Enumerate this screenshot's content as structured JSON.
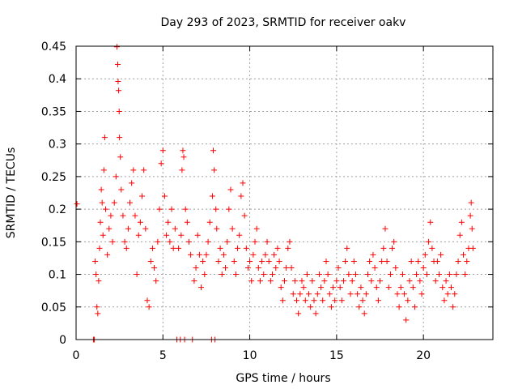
{
  "chart_data": {
    "type": "scatter",
    "title": "Day 293 of 2023, SRMTID for receiver oakv",
    "xlabel": "GPS time / hours",
    "ylabel": "SRMTID / TECUs",
    "xlim": [
      0,
      24
    ],
    "ylim": [
      0,
      0.45
    ],
    "xticks": [
      0,
      5,
      10,
      15,
      20
    ],
    "xtick_labels": [
      "0",
      "5",
      "10",
      "15",
      "20"
    ],
    "yticks": [
      0,
      0.05,
      0.1,
      0.15,
      0.2,
      0.25,
      0.3,
      0.35,
      0.4,
      0.45
    ],
    "ytick_labels": [
      "0",
      "0.05",
      "0.1",
      "0.15",
      "0.2",
      "0.25",
      "0.3",
      "0.35",
      "0.4",
      "0.45"
    ],
    "grid": true,
    "marker": "plus",
    "color": "#ff0000",
    "series": [
      {
        "name": "SRMTID",
        "points": [
          [
            0.05,
            0.208
          ],
          [
            1.0,
            0.0
          ],
          [
            1.05,
            0.0
          ],
          [
            1.1,
            0.12
          ],
          [
            1.15,
            0.1
          ],
          [
            1.2,
            0.05
          ],
          [
            1.25,
            0.04
          ],
          [
            1.3,
            0.09
          ],
          [
            1.35,
            0.14
          ],
          [
            1.4,
            0.18
          ],
          [
            1.45,
            0.23
          ],
          [
            1.5,
            0.21
          ],
          [
            1.55,
            0.16
          ],
          [
            1.6,
            0.26
          ],
          [
            1.65,
            0.31
          ],
          [
            1.7,
            0.2
          ],
          [
            1.8,
            0.13
          ],
          [
            1.9,
            0.17
          ],
          [
            2.0,
            0.19
          ],
          [
            2.1,
            0.15
          ],
          [
            2.2,
            0.21
          ],
          [
            2.3,
            0.25
          ],
          [
            2.35,
            0.449
          ],
          [
            2.4,
            0.422
          ],
          [
            2.42,
            0.396
          ],
          [
            2.45,
            0.382
          ],
          [
            2.48,
            0.35
          ],
          [
            2.5,
            0.31
          ],
          [
            2.55,
            0.28
          ],
          [
            2.6,
            0.23
          ],
          [
            2.7,
            0.19
          ],
          [
            2.8,
            0.15
          ],
          [
            2.9,
            0.14
          ],
          [
            3.0,
            0.17
          ],
          [
            3.1,
            0.21
          ],
          [
            3.2,
            0.24
          ],
          [
            3.3,
            0.26
          ],
          [
            3.4,
            0.19
          ],
          [
            3.5,
            0.1
          ],
          [
            3.6,
            0.16
          ],
          [
            3.7,
            0.18
          ],
          [
            3.8,
            0.22
          ],
          [
            3.9,
            0.26
          ],
          [
            4.0,
            0.17
          ],
          [
            4.1,
            0.06
          ],
          [
            4.2,
            0.05
          ],
          [
            4.3,
            0.12
          ],
          [
            4.4,
            0.14
          ],
          [
            4.5,
            0.11
          ],
          [
            4.6,
            0.09
          ],
          [
            4.7,
            0.15
          ],
          [
            4.8,
            0.2
          ],
          [
            4.9,
            0.27
          ],
          [
            5.0,
            0.29
          ],
          [
            5.1,
            0.22
          ],
          [
            5.2,
            0.16
          ],
          [
            5.3,
            0.18
          ],
          [
            5.4,
            0.15
          ],
          [
            5.5,
            0.2
          ],
          [
            5.6,
            0.14
          ],
          [
            5.7,
            0.17
          ],
          [
            5.8,
            0.0
          ],
          [
            5.9,
            0.14
          ],
          [
            6.0,
            0.0
          ],
          [
            6.05,
            0.16
          ],
          [
            6.1,
            0.26
          ],
          [
            6.15,
            0.29
          ],
          [
            6.2,
            0.28
          ],
          [
            6.25,
            0.0
          ],
          [
            6.3,
            0.2
          ],
          [
            6.4,
            0.18
          ],
          [
            6.5,
            0.15
          ],
          [
            6.6,
            0.13
          ],
          [
            6.7,
            0.0
          ],
          [
            6.8,
            0.09
          ],
          [
            6.9,
            0.11
          ],
          [
            7.0,
            0.16
          ],
          [
            7.1,
            0.13
          ],
          [
            7.2,
            0.08
          ],
          [
            7.3,
            0.12
          ],
          [
            7.4,
            0.1
          ],
          [
            7.5,
            0.13
          ],
          [
            7.6,
            0.15
          ],
          [
            7.7,
            0.18
          ],
          [
            7.8,
            0.0
          ],
          [
            7.85,
            0.22
          ],
          [
            7.9,
            0.29
          ],
          [
            7.95,
            0.26
          ],
          [
            8.0,
            0.0
          ],
          [
            8.05,
            0.2
          ],
          [
            8.1,
            0.17
          ],
          [
            8.2,
            0.12
          ],
          [
            8.3,
            0.14
          ],
          [
            8.4,
            0.1
          ],
          [
            8.5,
            0.13
          ],
          [
            8.6,
            0.11
          ],
          [
            8.7,
            0.15
          ],
          [
            8.8,
            0.2
          ],
          [
            8.9,
            0.23
          ],
          [
            9.0,
            0.17
          ],
          [
            9.1,
            0.12
          ],
          [
            9.2,
            0.1
          ],
          [
            9.3,
            0.14
          ],
          [
            9.4,
            0.16
          ],
          [
            9.5,
            0.22
          ],
          [
            9.6,
            0.24
          ],
          [
            9.7,
            0.19
          ],
          [
            9.8,
            0.14
          ],
          [
            9.9,
            0.11
          ],
          [
            10.0,
            0.12
          ],
          [
            10.1,
            0.09
          ],
          [
            10.2,
            0.13
          ],
          [
            10.3,
            0.15
          ],
          [
            10.4,
            0.17
          ],
          [
            10.5,
            0.11
          ],
          [
            10.6,
            0.09
          ],
          [
            10.7,
            0.12
          ],
          [
            10.8,
            0.1
          ],
          [
            10.9,
            0.13
          ],
          [
            11.0,
            0.15
          ],
          [
            11.1,
            0.12
          ],
          [
            11.2,
            0.09
          ],
          [
            11.3,
            0.1
          ],
          [
            11.4,
            0.13
          ],
          [
            11.5,
            0.11
          ],
          [
            11.6,
            0.14
          ],
          [
            11.7,
            0.12
          ],
          [
            11.8,
            0.08
          ],
          [
            11.9,
            0.06
          ],
          [
            12.0,
            0.09
          ],
          [
            12.1,
            0.11
          ],
          [
            12.2,
            0.14
          ],
          [
            12.3,
            0.15
          ],
          [
            12.4,
            0.11
          ],
          [
            12.5,
            0.07
          ],
          [
            12.6,
            0.09
          ],
          [
            12.7,
            0.06
          ],
          [
            12.8,
            0.04
          ],
          [
            12.9,
            0.07
          ],
          [
            13.0,
            0.09
          ],
          [
            13.1,
            0.08
          ],
          [
            13.2,
            0.06
          ],
          [
            13.3,
            0.1
          ],
          [
            13.4,
            0.07
          ],
          [
            13.5,
            0.05
          ],
          [
            13.6,
            0.09
          ],
          [
            13.7,
            0.06
          ],
          [
            13.8,
            0.04
          ],
          [
            13.9,
            0.07
          ],
          [
            14.0,
            0.1
          ],
          [
            14.1,
            0.08
          ],
          [
            14.2,
            0.06
          ],
          [
            14.3,
            0.09
          ],
          [
            14.4,
            0.12
          ],
          [
            14.5,
            0.1
          ],
          [
            14.6,
            0.07
          ],
          [
            14.7,
            0.05
          ],
          [
            14.8,
            0.08
          ],
          [
            14.9,
            0.06
          ],
          [
            15.0,
            0.09
          ],
          [
            15.1,
            0.11
          ],
          [
            15.2,
            0.08
          ],
          [
            15.3,
            0.06
          ],
          [
            15.4,
            0.09
          ],
          [
            15.5,
            0.12
          ],
          [
            15.6,
            0.14
          ],
          [
            15.7,
            0.1
          ],
          [
            15.8,
            0.07
          ],
          [
            15.9,
            0.09
          ],
          [
            16.0,
            0.12
          ],
          [
            16.1,
            0.1
          ],
          [
            16.2,
            0.07
          ],
          [
            16.3,
            0.05
          ],
          [
            16.4,
            0.08
          ],
          [
            16.5,
            0.06
          ],
          [
            16.6,
            0.04
          ],
          [
            16.7,
            0.07
          ],
          [
            16.8,
            0.1
          ],
          [
            16.9,
            0.12
          ],
          [
            17.0,
            0.09
          ],
          [
            17.1,
            0.13
          ],
          [
            17.2,
            0.11
          ],
          [
            17.3,
            0.08
          ],
          [
            17.4,
            0.06
          ],
          [
            17.5,
            0.09
          ],
          [
            17.6,
            0.12
          ],
          [
            17.7,
            0.14
          ],
          [
            17.8,
            0.17
          ],
          [
            17.9,
            0.12
          ],
          [
            18.0,
            0.08
          ],
          [
            18.1,
            0.1
          ],
          [
            18.2,
            0.14
          ],
          [
            18.3,
            0.15
          ],
          [
            18.4,
            0.11
          ],
          [
            18.5,
            0.07
          ],
          [
            18.6,
            0.05
          ],
          [
            18.7,
            0.08
          ],
          [
            18.8,
            0.1
          ],
          [
            18.9,
            0.07
          ],
          [
            19.0,
            0.03
          ],
          [
            19.1,
            0.06
          ],
          [
            19.2,
            0.09
          ],
          [
            19.3,
            0.12
          ],
          [
            19.4,
            0.08
          ],
          [
            19.5,
            0.05
          ],
          [
            19.6,
            0.1
          ],
          [
            19.7,
            0.12
          ],
          [
            19.8,
            0.09
          ],
          [
            19.9,
            0.07
          ],
          [
            20.0,
            0.11
          ],
          [
            20.1,
            0.13
          ],
          [
            20.2,
            0.1
          ],
          [
            20.3,
            0.15
          ],
          [
            20.4,
            0.18
          ],
          [
            20.5,
            0.14
          ],
          [
            20.6,
            0.12
          ],
          [
            20.7,
            0.09
          ],
          [
            20.8,
            0.12
          ],
          [
            20.9,
            0.1
          ],
          [
            21.0,
            0.13
          ],
          [
            21.1,
            0.08
          ],
          [
            21.2,
            0.06
          ],
          [
            21.3,
            0.09
          ],
          [
            21.4,
            0.07
          ],
          [
            21.5,
            0.1
          ],
          [
            21.6,
            0.08
          ],
          [
            21.7,
            0.05
          ],
          [
            21.8,
            0.07
          ],
          [
            21.9,
            0.1
          ],
          [
            22.0,
            0.12
          ],
          [
            22.1,
            0.16
          ],
          [
            22.2,
            0.18
          ],
          [
            22.3,
            0.13
          ],
          [
            22.4,
            0.1
          ],
          [
            22.5,
            0.12
          ],
          [
            22.6,
            0.14
          ],
          [
            22.7,
            0.19
          ],
          [
            22.75,
            0.21
          ],
          [
            22.8,
            0.17
          ],
          [
            22.85,
            0.14
          ]
        ]
      }
    ]
  }
}
